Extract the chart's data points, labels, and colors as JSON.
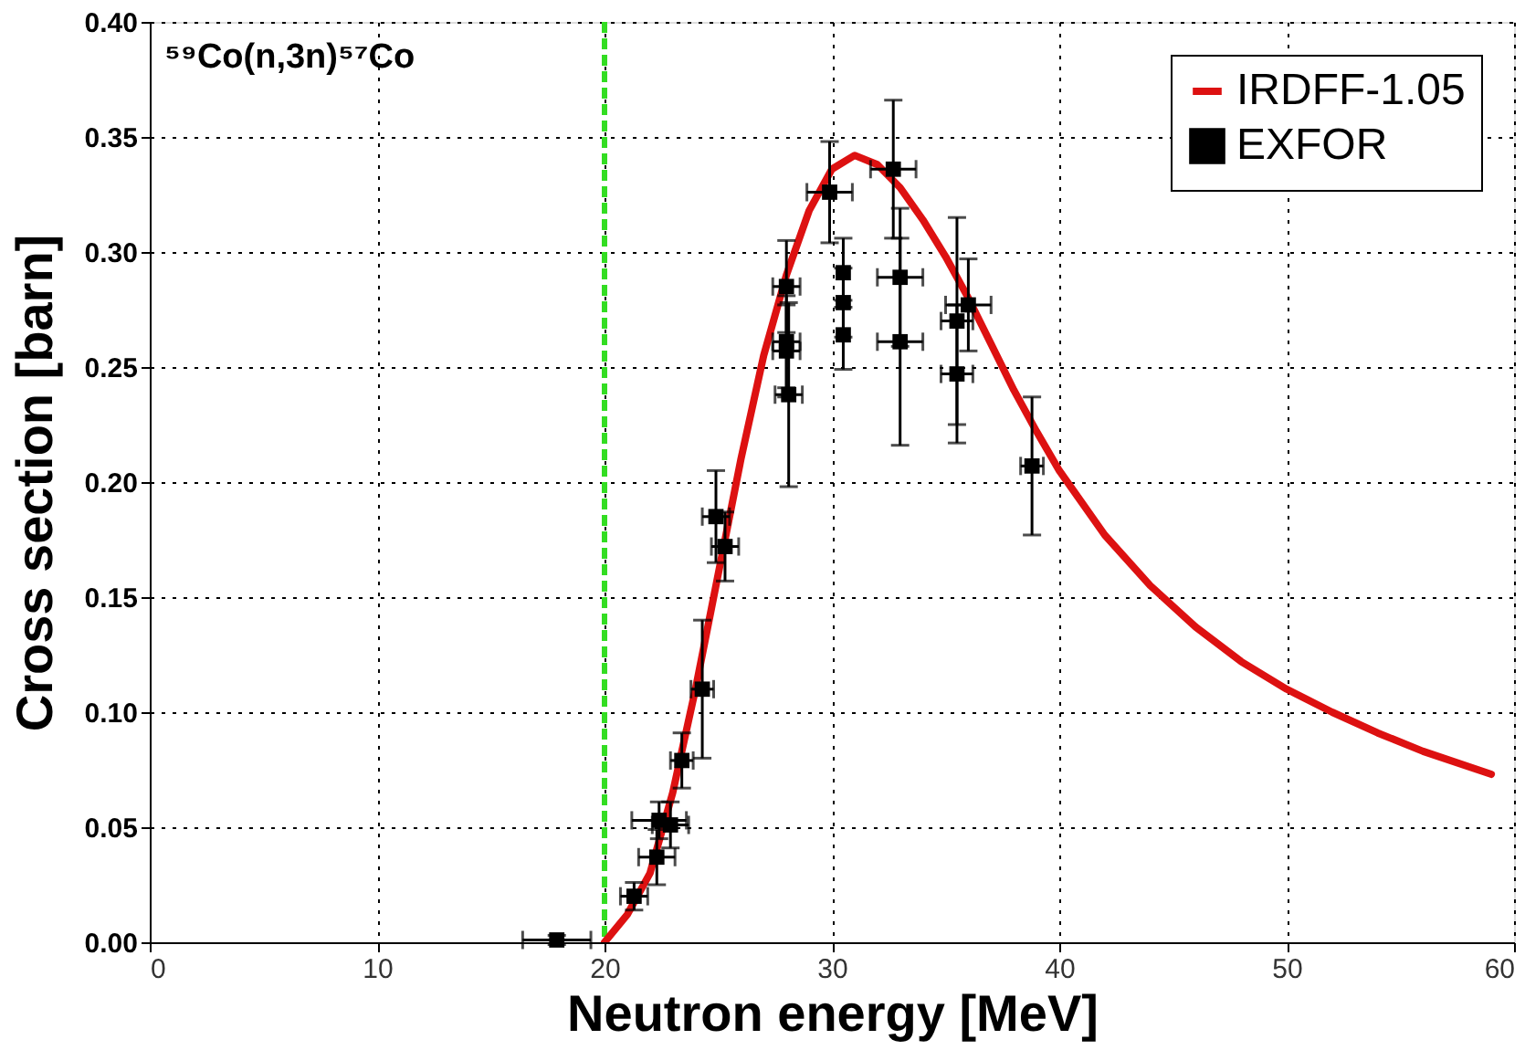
{
  "chart_data": {
    "type": "scatter",
    "xlabel": "Neutron energy [MeV]",
    "ylabel": "Cross section [barn]",
    "annotations": [
      "⁵⁹Co(n,3n)⁵⁷Co"
    ],
    "xlim": [
      0,
      60
    ],
    "xticks": [
      0,
      10,
      20,
      30,
      40,
      50,
      60
    ],
    "ylim": [
      0,
      0.4
    ],
    "yticks": [
      {
        "value": 0,
        "label": "0.00"
      },
      {
        "value": 0.05,
        "label": "0.05"
      },
      {
        "value": 0.1,
        "label": "0.10"
      },
      {
        "value": 0.15,
        "label": "0.15"
      },
      {
        "value": 0.2,
        "label": "0.20"
      },
      {
        "value": 0.25,
        "label": "0.25"
      },
      {
        "value": 0.3,
        "label": "0.30"
      },
      {
        "value": 0.35,
        "label": "0.35"
      },
      {
        "value": 0.4,
        "label": "0.40"
      }
    ],
    "grid": true,
    "legend": "top right",
    "ref_lines": [
      {
        "axis": "x",
        "value": 20,
        "color": "#33dd22",
        "line_style": "dashed"
      }
    ],
    "series": [
      {
        "name": "IRDFF-1.05",
        "type": "line",
        "color": "#dd1111",
        "marker": "none",
        "line_style": "solid",
        "x": [
          20,
          21,
          22,
          23,
          24,
          25,
          26,
          27,
          28,
          29,
          30,
          31,
          32,
          33,
          34,
          35,
          36,
          37,
          38,
          39,
          40,
          42,
          44,
          46,
          48,
          50,
          52,
          54,
          56,
          59
        ],
        "values": [
          0,
          0.012,
          0.03,
          0.065,
          0.11,
          0.16,
          0.21,
          0.255,
          0.29,
          0.318,
          0.336,
          0.342,
          0.338,
          0.328,
          0.314,
          0.298,
          0.28,
          0.26,
          0.24,
          0.222,
          0.205,
          0.177,
          0.155,
          0.137,
          0.122,
          0.11,
          0.1,
          0.091,
          0.083,
          0.073
        ]
      },
      {
        "name": "EXFOR",
        "color": "#000000",
        "marker": "square",
        "x": [
          17.9,
          21.3,
          22.3,
          22.4,
          22.9,
          23.4,
          24.3,
          24.9,
          25.3,
          28.0,
          28.0,
          28.0,
          28.1,
          30.5,
          30.5,
          30.5,
          33.0,
          33.0,
          35.5,
          35.5,
          36.0,
          38.8,
          29.9,
          32.7
        ],
        "values": [
          0.001,
          0.02,
          0.037,
          0.053,
          0.051,
          0.079,
          0.11,
          0.185,
          0.172,
          0.285,
          0.261,
          0.257,
          0.238,
          0.291,
          0.278,
          0.264,
          0.289,
          0.261,
          0.27,
          0.247,
          0.277,
          0.207,
          0.326,
          0.336
        ],
        "errors": [
          0.002,
          0.006,
          0.012,
          0.008,
          0.01,
          0.012,
          0.03,
          0.02,
          0.015,
          0.02,
          0.02,
          0.02,
          0.04,
          0.015,
          0.015,
          0.015,
          0.03,
          0.045,
          0.045,
          0.03,
          0.02,
          0.03,
          0.022,
          0.03
        ],
        "xerrors": [
          1.5,
          0.6,
          0.8,
          1.2,
          0.8,
          0.5,
          0.5,
          0.6,
          0.6,
          0.6,
          0.6,
          0.6,
          0.6,
          null,
          null,
          null,
          1.0,
          1.0,
          0.7,
          0.7,
          1.0,
          0.5,
          1.0,
          1.0
        ]
      }
    ]
  }
}
